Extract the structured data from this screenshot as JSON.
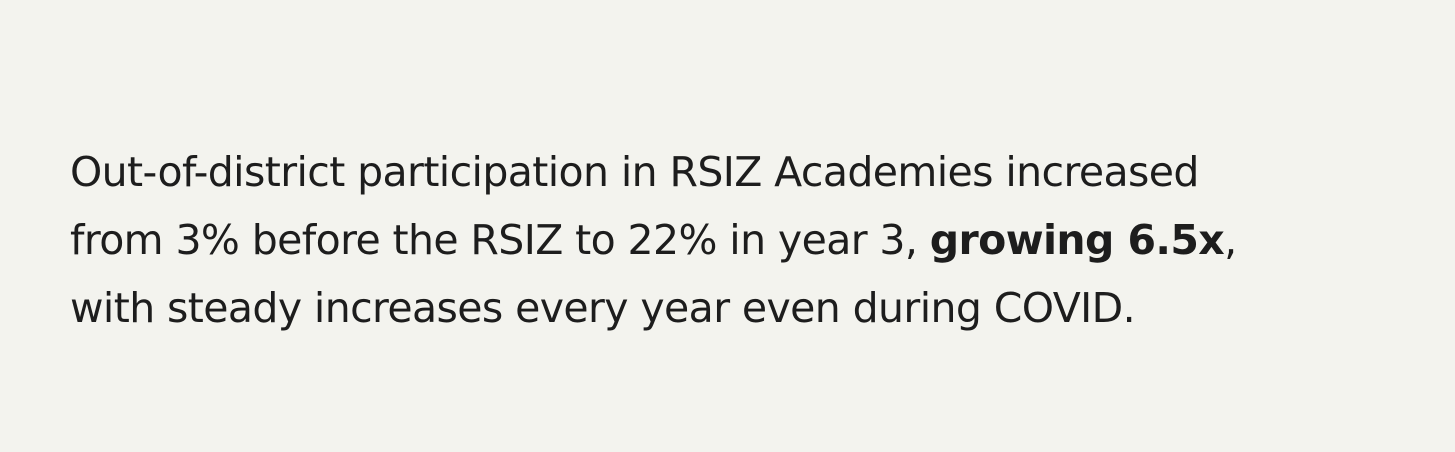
{
  "statement": {
    "line1": "Out-of-district participation in RSIZ Academies increased",
    "line2_before": "from 3% before the RSIZ to 22% in year 3, ",
    "line2_emphasis": "growing 6.5x",
    "line2_after": ",",
    "line3": "with steady increases every year even during COVID."
  },
  "colors": {
    "background": "#f3f3ee",
    "text": "#1d1d1d"
  }
}
